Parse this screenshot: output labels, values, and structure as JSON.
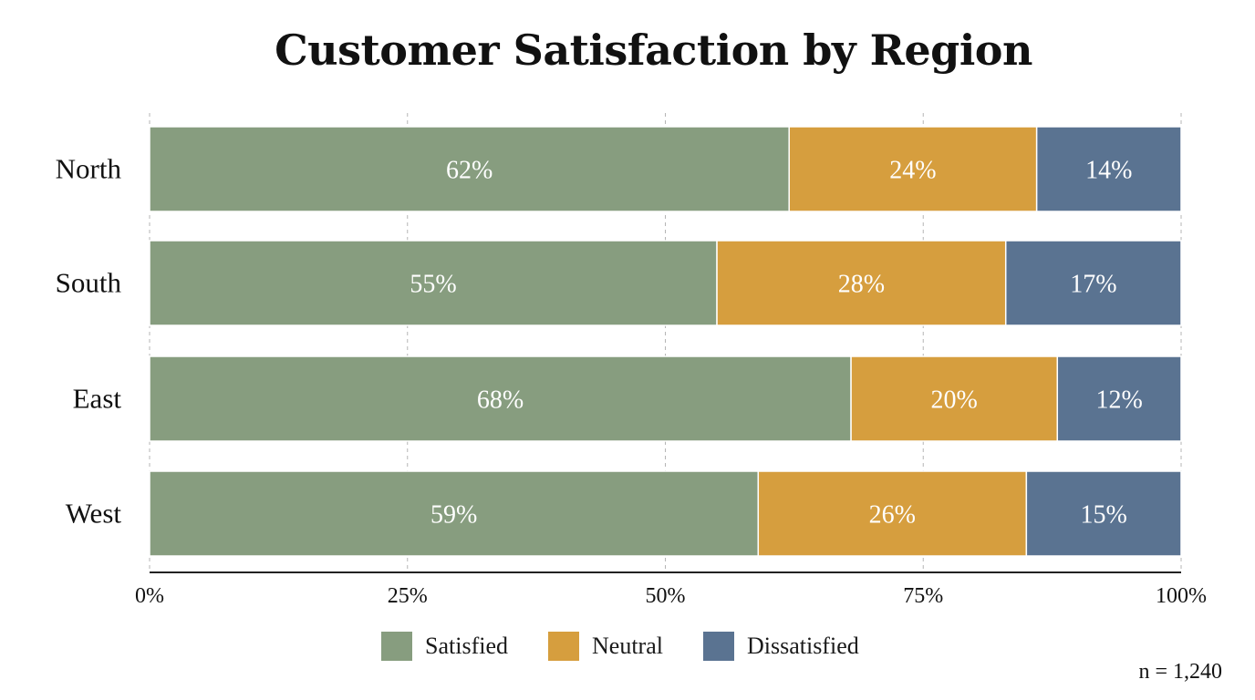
{
  "title": "Customer Satisfaction by Region",
  "note": "n = 1,240",
  "colors": {
    "Satisfied": "#879d7f",
    "Neutral": "#d69e3e",
    "Dissatisfied": "#5a7391",
    "grid": "#b5b5b5",
    "axis": "#222222",
    "bar_label": "#ffffff"
  },
  "legend": [
    {
      "label": "Satisfied",
      "color": "#879d7f"
    },
    {
      "label": "Neutral",
      "color": "#d69e3e"
    },
    {
      "label": "Dissatisfied",
      "color": "#5a7391"
    }
  ],
  "chart_data": {
    "type": "bar",
    "orientation": "horizontal",
    "stacked": true,
    "title": "Customer Satisfaction by Region",
    "categories": [
      "North",
      "South",
      "East",
      "West"
    ],
    "series": [
      {
        "name": "Satisfied",
        "values": [
          62,
          55,
          68,
          59
        ],
        "labels": [
          "62%",
          "55%",
          "68%",
          "59%"
        ]
      },
      {
        "name": "Neutral",
        "values": [
          24,
          28,
          20,
          26
        ],
        "labels": [
          "24%",
          "28%",
          "20%",
          "26%"
        ]
      },
      {
        "name": "Dissatisfied",
        "values": [
          14,
          17,
          12,
          15
        ],
        "labels": [
          "14%",
          "17%",
          "12%",
          "15%"
        ]
      }
    ],
    "xlim": [
      0,
      100
    ],
    "x_ticks": [
      0,
      25,
      50,
      75,
      100
    ],
    "x_tick_labels": [
      "0%",
      "25%",
      "50%",
      "75%",
      "100%"
    ],
    "xlabel": "",
    "ylabel": "",
    "grid": "vertical dashed",
    "legend_position": "bottom"
  }
}
